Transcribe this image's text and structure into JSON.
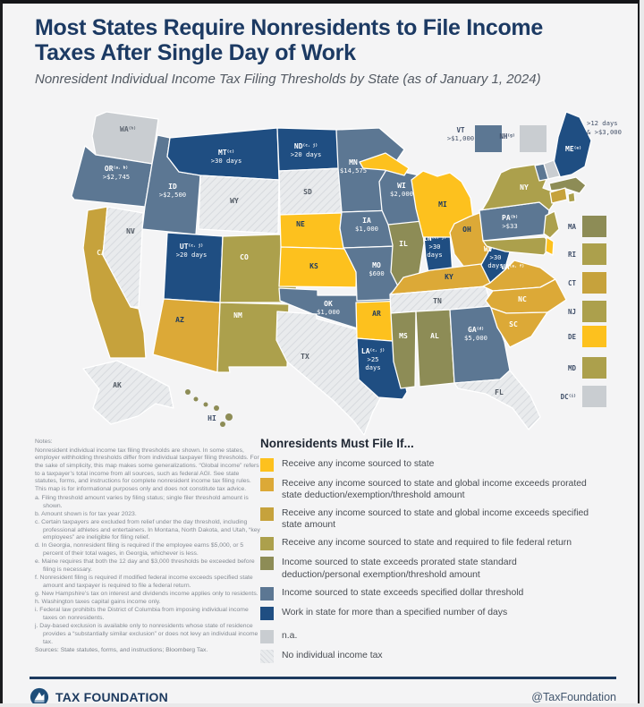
{
  "header": {
    "title1": "Most States Require Nonresidents to File Income",
    "title2": "Taxes After Single Day of Work",
    "subtitle": "Nonresident Individual Income Tax Filing Thresholds by State (as of January 1, 2024)"
  },
  "categories": {
    "cat1": {
      "label": "Receive any income sourced to state",
      "color": "#FDC11E"
    },
    "cat2": {
      "label": "Receive any income sourced to state and global income exceeds prorated state deduction/exemption/threshold amount",
      "color": "#DCA937"
    },
    "cat3": {
      "label": "Receive any income sourced to state and global income exceeds specified state amount",
      "color": "#C6A23C"
    },
    "cat4": {
      "label": "Receive any income sourced to state and required to file federal return",
      "color": "#ACA04C"
    },
    "cat5": {
      "label": "Income sourced to state exceeds prorated state standard deduction/personal exemption/threshold amount",
      "color": "#8D8C56"
    },
    "cat6": {
      "label": "Income sourced to state exceeds specified dollar threshold",
      "color": "#5C7793"
    },
    "cat7": {
      "label": "Work in state for more than a specified number of days",
      "color": "#1F4E82"
    },
    "cat8": {
      "label": "n.a.",
      "color": "#C9CDD1"
    },
    "cat9": {
      "label": "No individual income tax",
      "color": "#E9EBED"
    }
  },
  "legend": {
    "title": "Nonresidents Must File If...",
    "order": [
      "cat1",
      "cat2",
      "cat3",
      "cat4",
      "cat5",
      "cat6",
      "cat7",
      "cat8",
      "cat9"
    ]
  },
  "map": {
    "states": [
      {
        "code": "WA",
        "sup": "(h)",
        "category": "cat8"
      },
      {
        "code": "OR",
        "sup": "(a, b)",
        "value_lines": [
          ">$2,745"
        ],
        "category": "cat6"
      },
      {
        "code": "CA",
        "category": "cat3"
      },
      {
        "code": "NV",
        "category": "cat9"
      },
      {
        "code": "ID",
        "value_lines": [
          ">$2,500"
        ],
        "category": "cat6"
      },
      {
        "code": "MT",
        "sup": "(c)",
        "value_lines": [
          ">30 days"
        ],
        "category": "cat7"
      },
      {
        "code": "WY",
        "category": "cat9"
      },
      {
        "code": "UT",
        "sup": "(c, j)",
        "value_lines": [
          ">20 days"
        ],
        "category": "cat7"
      },
      {
        "code": "AZ",
        "category": "cat2"
      },
      {
        "code": "NM",
        "category": "cat4"
      },
      {
        "code": "CO",
        "category": "cat4"
      },
      {
        "code": "ND",
        "sup": "(c, j)",
        "value_lines": [
          ">20 days"
        ],
        "category": "cat7"
      },
      {
        "code": "SD",
        "category": "cat9"
      },
      {
        "code": "NE",
        "category": "cat1"
      },
      {
        "code": "KS",
        "category": "cat1"
      },
      {
        "code": "OK",
        "value_lines": [
          "$1,000"
        ],
        "category": "cat6"
      },
      {
        "code": "TX",
        "category": "cat9"
      },
      {
        "code": "MN",
        "value_lines": [
          "$14,575"
        ],
        "category": "cat6"
      },
      {
        "code": "IA",
        "value_lines": [
          "$1,000"
        ],
        "category": "cat6"
      },
      {
        "code": "MO",
        "value_lines": [
          "$600"
        ],
        "category": "cat6"
      },
      {
        "code": "AR",
        "category": "cat1"
      },
      {
        "code": "LA",
        "sup": "(c, j)",
        "value_lines": [
          ">25",
          "days"
        ],
        "category": "cat7"
      },
      {
        "code": "WI",
        "value_lines": [
          "$2,000"
        ],
        "category": "cat6"
      },
      {
        "code": "IL",
        "category": "cat5"
      },
      {
        "code": "IN",
        "sup": "(c, j)",
        "value_lines": [
          ">30",
          "days"
        ],
        "category": "cat7"
      },
      {
        "code": "MI",
        "category": "cat1"
      },
      {
        "code": "OH",
        "category": "cat2"
      },
      {
        "code": "KY",
        "category": "cat2"
      },
      {
        "code": "TN",
        "category": "cat9"
      },
      {
        "code": "MS",
        "category": "cat5"
      },
      {
        "code": "AL",
        "category": "cat5"
      },
      {
        "code": "GA",
        "sup": "(d)",
        "value_lines": [
          "$5,000"
        ],
        "category": "cat6"
      },
      {
        "code": "FL",
        "category": "cat9"
      },
      {
        "code": "WV",
        "sup": "(c, j)",
        "value_lines": [
          ">30",
          "days"
        ],
        "category": "cat7"
      },
      {
        "code": "VA",
        "sup": "(a, f)",
        "category": "cat2"
      },
      {
        "code": "NC",
        "category": "cat2"
      },
      {
        "code": "SC",
        "category": "cat2"
      },
      {
        "code": "PA",
        "sup": "(b)",
        "value_lines": [
          ">$33"
        ],
        "category": "cat6"
      },
      {
        "code": "NY",
        "category": "cat4"
      },
      {
        "code": "ME",
        "sup": "(e)",
        "category": "cat7"
      },
      {
        "code": "AK",
        "category": "cat9"
      },
      {
        "code": "HI",
        "category": "cat5"
      }
    ],
    "callouts": [
      {
        "code": "VT",
        "value_lines": [
          ">$1,000"
        ],
        "category": "cat6"
      },
      {
        "code": "NH",
        "sup": "(g)",
        "category": "cat8"
      }
    ],
    "squares": [
      {
        "code": "MA",
        "category": "cat5"
      },
      {
        "code": "RI",
        "category": "cat4"
      },
      {
        "code": "CT",
        "category": "cat3"
      },
      {
        "code": "NJ",
        "category": "cat4"
      },
      {
        "code": "DE",
        "category": "cat1"
      },
      {
        "code": "MD",
        "category": "cat4"
      },
      {
        "code": "DC",
        "sup": "(i)",
        "category": "cat8"
      }
    ],
    "me_annotation": [
      ">12 days",
      "& >$3,000"
    ]
  },
  "notes": {
    "heading": "Notes:",
    "intro": "Nonresident individual income tax filing thresholds are shown. In some states, employer withholding thresholds differ from individual taxpayer filing thresholds. For the sake of simplicity, this map makes some generalizations. “Global income” refers to a taxpayer’s total income from all sources, such as federal AGI. See state statutes, forms, and instructions for complete nonresident income tax filing rules. This map is for informational purposes only and does not constitute tax advice.",
    "items": [
      {
        "letter": "a.",
        "text": "Filing threshold amount varies by filing status; single filer threshold amount is shown."
      },
      {
        "letter": "b.",
        "text": "Amount shown is for tax year 2023."
      },
      {
        "letter": "c.",
        "text": "Certain taxpayers are excluded from relief under the day threshold, including professional athletes and entertainers. In Montana, North Dakota, and Utah, “key employees” are ineligible for filing relief."
      },
      {
        "letter": "d.",
        "text": "In Georgia, nonresident filing is required if the employee earns $5,000, or 5 percent of their total wages, in Georgia, whichever is less."
      },
      {
        "letter": "e.",
        "text": "Maine requires that both the 12 day and $3,000 thresholds be exceeded before filing is necessary."
      },
      {
        "letter": "f.",
        "text": "Nonresident filing is required if modified federal income exceeds specified state amount and taxpayer is required to file a federal return."
      },
      {
        "letter": "g.",
        "text": "New Hampshire’s tax on interest and dividends income applies only to residents."
      },
      {
        "letter": "h.",
        "text": "Washington taxes capital gains income only."
      },
      {
        "letter": "i.",
        "text": "Federal law prohibits the District of Columbia from imposing individual income taxes on nonresidents."
      },
      {
        "letter": "j.",
        "text": "Day-based exclusion is available only to nonresidents whose state of residence provides a “substantially similar exclusion” or does not levy an individual income tax."
      }
    ],
    "sources": "Sources: State statutes, forms, and instructions; Bloomberg Tax."
  },
  "footer": {
    "brand": "TAX FOUNDATION",
    "handle": "@TaxFoundation"
  }
}
